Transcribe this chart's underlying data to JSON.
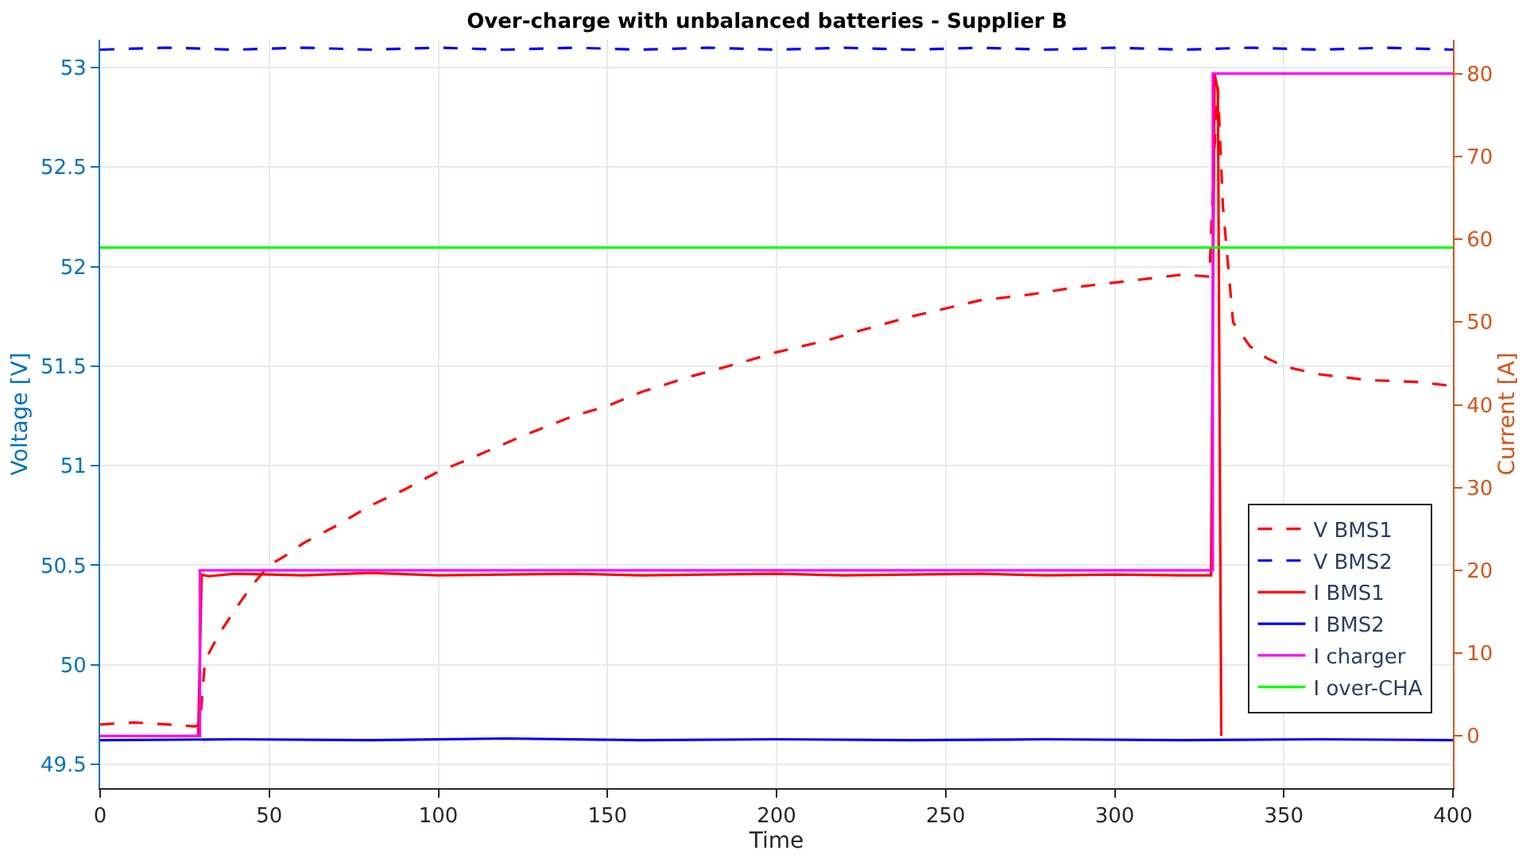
{
  "chart_data": {
    "type": "line",
    "title": "Over-charge with unbalanced batteries - Supplier B",
    "xlabel": "Time",
    "ylabel": "Voltage [V]",
    "y2label": "Current [A]",
    "xlim": [
      0,
      400
    ],
    "xticks": [
      0,
      50,
      100,
      150,
      200,
      250,
      300,
      350,
      400
    ],
    "ylim": [
      49.38,
      53.14
    ],
    "yticks": [
      49.5,
      50,
      50.5,
      51,
      51.5,
      52,
      52.5,
      53
    ],
    "y2lim": [
      -6.3,
      84.1
    ],
    "y2ticks": [
      0,
      10,
      20,
      30,
      40,
      50,
      60,
      70,
      80
    ],
    "grid": true,
    "legend": "bottom right",
    "marker": "none",
    "series": [
      {
        "name": "V BMS1",
        "color": "#ff0000",
        "line_style": "dashed",
        "x": [
          0,
          10,
          20,
          28,
          29.5,
          31,
          35,
          40,
          45,
          50,
          55,
          60,
          70,
          80,
          90,
          100,
          110,
          125,
          140,
          150,
          160,
          175,
          190,
          200,
          215,
          225,
          240,
          250,
          260,
          275,
          290,
          300,
          310,
          320,
          328,
          329.5,
          330.5,
          332,
          335,
          340,
          345,
          350,
          360,
          375,
          390,
          400
        ],
        "values": [
          49.7,
          49.71,
          49.7,
          49.69,
          49.7,
          50.02,
          50.15,
          50.28,
          50.4,
          50.5,
          50.55,
          50.61,
          50.7,
          50.8,
          50.88,
          50.97,
          51.04,
          51.15,
          51.25,
          51.3,
          51.37,
          51.45,
          51.52,
          51.57,
          51.63,
          51.68,
          51.75,
          51.79,
          51.83,
          51.86,
          51.9,
          51.92,
          51.94,
          51.96,
          51.95,
          52.6,
          52.9,
          52.3,
          51.72,
          51.6,
          51.54,
          51.5,
          51.46,
          51.43,
          51.42,
          51.4
        ]
      },
      {
        "name": "V BMS2",
        "color": "#0000ff",
        "line_style": "dashed",
        "x": [
          0,
          20,
          40,
          60,
          80,
          100,
          120,
          140,
          160,
          180,
          200,
          220,
          240,
          260,
          280,
          300,
          320,
          340,
          360,
          380,
          400
        ],
        "values": [
          53.09,
          53.1,
          53.09,
          53.1,
          53.09,
          53.1,
          53.09,
          53.1,
          53.09,
          53.1,
          53.09,
          53.1,
          53.09,
          53.1,
          53.09,
          53.1,
          53.09,
          53.1,
          53.09,
          53.1,
          53.09
        ]
      },
      {
        "name": "I BMS1",
        "color": "#ff0000",
        "axis": "y2",
        "line_style": "solid",
        "x": [
          29,
          30,
          32,
          40,
          60,
          80,
          100,
          120,
          140,
          160,
          180,
          200,
          220,
          240,
          260,
          280,
          300,
          320,
          328.5,
          329.5,
          330.5,
          331.5
        ],
        "values": [
          0,
          19.5,
          19.3,
          19.6,
          19.4,
          19.7,
          19.4,
          19.5,
          19.6,
          19.4,
          19.5,
          19.6,
          19.4,
          19.5,
          19.6,
          19.4,
          19.5,
          19.4,
          19.4,
          80,
          78,
          0
        ]
      },
      {
        "name": "I BMS2",
        "color": "#0000ff",
        "axis": "y2",
        "line_style": "solid",
        "x": [
          0,
          40,
          80,
          120,
          160,
          200,
          240,
          280,
          320,
          360,
          400
        ],
        "values": [
          -0.5,
          -0.4,
          -0.5,
          -0.3,
          -0.5,
          -0.4,
          -0.5,
          -0.4,
          -0.5,
          -0.4,
          -0.5
        ]
      },
      {
        "name": "I charger",
        "color": "#ff00ff",
        "axis": "y2",
        "line_style": "solid",
        "x": [
          0,
          29.5,
          29.5,
          329,
          329,
          400
        ],
        "values": [
          0,
          0,
          20,
          20,
          80,
          80
        ]
      },
      {
        "name": "I over-CHA",
        "color": "#00ff00",
        "axis": "y2",
        "line_style": "solid",
        "x": [
          0,
          400
        ],
        "values": [
          59,
          59
        ]
      }
    ]
  }
}
